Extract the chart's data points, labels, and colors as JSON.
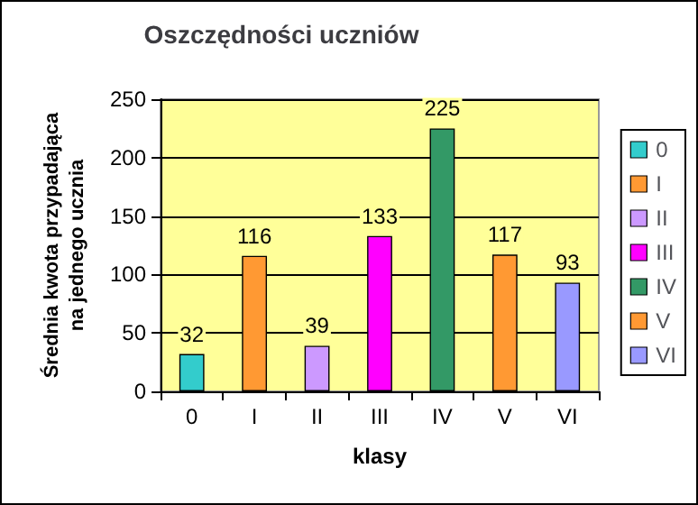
{
  "chart_data": {
    "type": "bar",
    "title": "Oszczędności uczniów",
    "xlabel": "klasy",
    "ylabel": "Średnia kwota przypadająca\nna jednego ucznia",
    "categories": [
      "0",
      "I",
      "II",
      "III",
      "IV",
      "V",
      "VI"
    ],
    "series": [
      {
        "name": "0",
        "color": "#33cccc",
        "values": [
          32,
          null,
          null,
          null,
          null,
          null,
          null
        ]
      },
      {
        "name": "I",
        "color": "#ff9933",
        "values": [
          null,
          116,
          null,
          null,
          null,
          null,
          null
        ]
      },
      {
        "name": "II",
        "color": "#cc99ff",
        "values": [
          null,
          null,
          39,
          null,
          null,
          null,
          null
        ]
      },
      {
        "name": "III",
        "color": "#ff00ff",
        "values": [
          null,
          null,
          null,
          133,
          null,
          null,
          null
        ]
      },
      {
        "name": "IV",
        "color": "#339966",
        "values": [
          null,
          null,
          null,
          null,
          225,
          null,
          null
        ]
      },
      {
        "name": "V",
        "color": "#ff9933",
        "values": [
          null,
          null,
          null,
          null,
          null,
          117,
          null
        ]
      },
      {
        "name": "VI",
        "color": "#9999ff",
        "values": [
          null,
          null,
          null,
          null,
          null,
          null,
          93
        ]
      }
    ],
    "ylim": [
      0,
      250
    ],
    "yticks": [
      0,
      50,
      100,
      150,
      200,
      250
    ],
    "grid": "y",
    "legend": "right",
    "data_labels": true
  }
}
